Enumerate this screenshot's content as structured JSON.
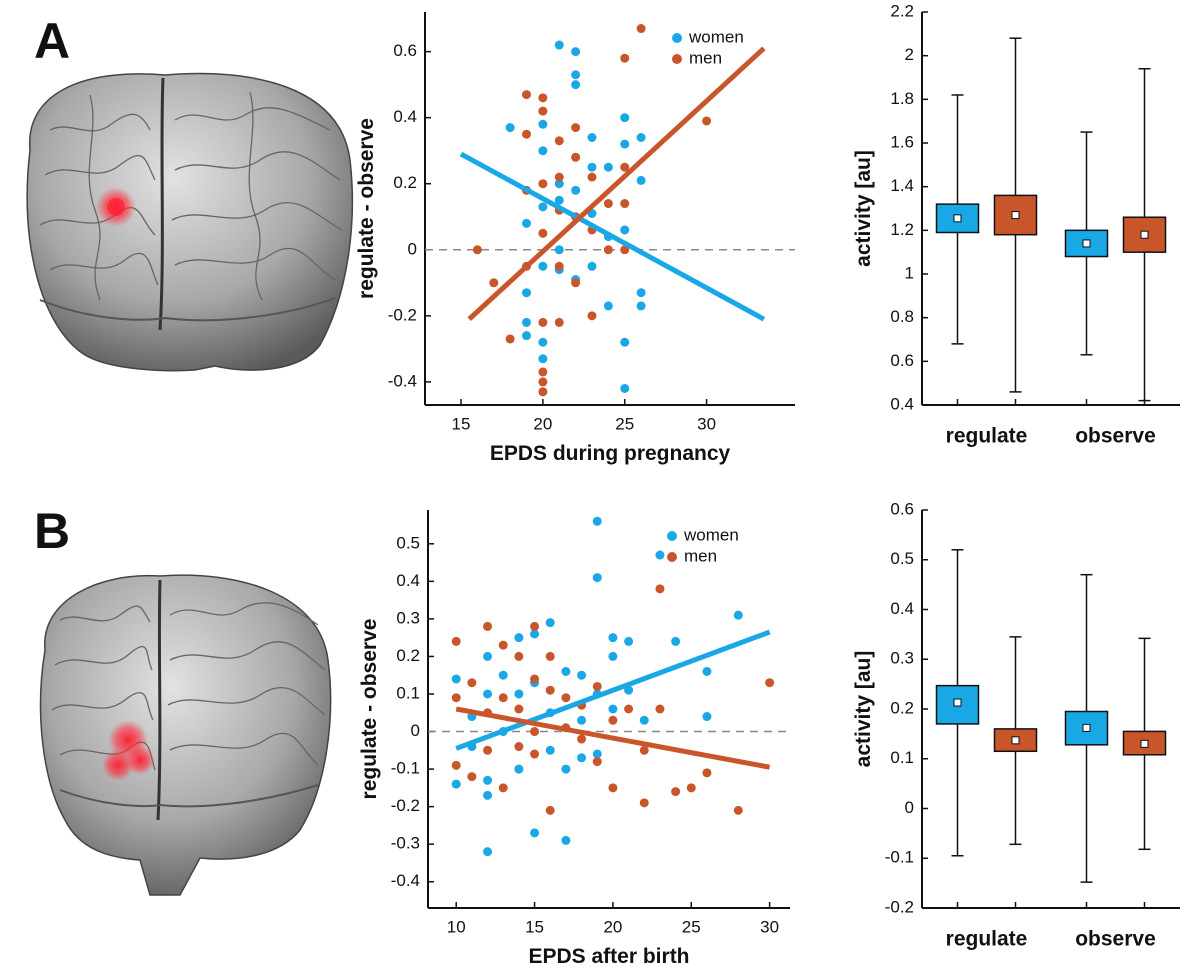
{
  "panel_labels": [
    "A",
    "B"
  ],
  "chart_data": [
    {
      "type": "scatter",
      "xlabel": "EPDS during pregnancy",
      "ylabel": "regulate - observe",
      "xlim": [
        12.8,
        35.4
      ],
      "ylim": [
        -0.47,
        0.72
      ],
      "xticks": [
        15,
        20,
        25,
        30
      ],
      "yticks": [
        -0.4,
        -0.2,
        0,
        0.2,
        0.4,
        0.6
      ],
      "hline": 0,
      "legend": "upper right",
      "series": [
        {
          "name": "women",
          "color": "#1aa7e6",
          "x": [
            18,
            19,
            19,
            19,
            19,
            20,
            20,
            20,
            20,
            20,
            20,
            21,
            21,
            21,
            21,
            21,
            22,
            22,
            22,
            22,
            22,
            23,
            23,
            23,
            23,
            24,
            24,
            24,
            25,
            25,
            25,
            25,
            25,
            26,
            26,
            26,
            26
          ],
          "values": [
            0.37,
            0.08,
            -0.13,
            -0.22,
            -0.26,
            0.38,
            0.3,
            0.13,
            -0.05,
            -0.28,
            -0.33,
            0.62,
            0.2,
            0.15,
            -0.06,
            0.0,
            0.6,
            0.53,
            0.5,
            0.18,
            -0.09,
            0.34,
            0.25,
            0.11,
            -0.05,
            0.25,
            0.04,
            -0.17,
            0.4,
            0.32,
            0.06,
            -0.28,
            -0.42,
            0.34,
            0.21,
            -0.13,
            -0.17
          ],
          "fit": {
            "x": [
              15,
              33.5
            ],
            "y": [
              0.29,
              -0.21
            ]
          }
        },
        {
          "name": "men",
          "color": "#c9562b",
          "x": [
            16,
            17,
            18,
            19,
            19,
            19,
            19,
            20,
            20,
            20,
            20,
            20,
            20,
            20,
            20,
            21,
            21,
            21,
            21,
            21,
            22,
            22,
            22,
            22,
            23,
            23,
            23,
            24,
            24,
            25,
            25,
            25,
            25,
            26,
            30
          ],
          "values": [
            0.0,
            -0.1,
            -0.27,
            0.47,
            0.35,
            0.18,
            -0.05,
            0.46,
            0.42,
            0.2,
            0.05,
            -0.22,
            -0.37,
            -0.4,
            -0.43,
            0.33,
            0.22,
            0.12,
            -0.05,
            -0.22,
            0.37,
            0.28,
            0.1,
            -0.1,
            0.22,
            0.06,
            -0.2,
            0.14,
            0.0,
            0.58,
            0.25,
            0.14,
            0.0,
            0.67,
            0.39
          ],
          "fit": {
            "x": [
              15.5,
              33.5
            ],
            "y": [
              -0.21,
              0.61
            ]
          }
        }
      ]
    },
    {
      "type": "box",
      "ylabel": "activity [au]",
      "categories": [
        "regulate",
        "observe"
      ],
      "ylim": [
        0.4,
        2.2
      ],
      "yticks": [
        0.4,
        0.6,
        0.8,
        1,
        1.2,
        1.4,
        1.6,
        1.8,
        2,
        2.2
      ],
      "series": [
        {
          "color": "#1aa7e6",
          "whisker_low": [
            0.68,
            0.63
          ],
          "q1": [
            1.19,
            1.08
          ],
          "mean": [
            1.255,
            1.14
          ],
          "q3": [
            1.32,
            1.2
          ],
          "whisker_high": [
            1.82,
            1.65
          ]
        },
        {
          "color": "#c9562b",
          "whisker_low": [
            0.46,
            0.42
          ],
          "q1": [
            1.18,
            1.1
          ],
          "mean": [
            1.27,
            1.18
          ],
          "q3": [
            1.36,
            1.26
          ],
          "whisker_high": [
            2.08,
            1.94
          ]
        }
      ]
    },
    {
      "type": "scatter",
      "xlabel": "EPDS after birth",
      "ylabel": "regulate - observe",
      "xlim": [
        8.2,
        31.3
      ],
      "ylim": [
        -0.47,
        0.59
      ],
      "xticks": [
        10,
        15,
        20,
        25,
        30
      ],
      "yticks": [
        -0.4,
        -0.3,
        -0.2,
        -0.1,
        0,
        0.1,
        0.2,
        0.3,
        0.4,
        0.5
      ],
      "hline": 0,
      "legend": "upper right",
      "series": [
        {
          "name": "women",
          "color": "#1aa7e6",
          "x": [
            10,
            10,
            11,
            11,
            12,
            12,
            12,
            12,
            12,
            13,
            13,
            14,
            14,
            14,
            15,
            15,
            15,
            16,
            16,
            16,
            17,
            17,
            17,
            18,
            18,
            18,
            19,
            19,
            19,
            19,
            20,
            20,
            20,
            21,
            21,
            22,
            23,
            24,
            26,
            26,
            28
          ],
          "values": [
            0.14,
            -0.14,
            0.04,
            -0.04,
            0.2,
            0.1,
            -0.13,
            -0.17,
            -0.32,
            0.15,
            0.0,
            0.25,
            0.1,
            -0.1,
            0.26,
            0.13,
            -0.27,
            0.29,
            0.05,
            -0.05,
            0.16,
            -0.1,
            -0.29,
            0.15,
            0.03,
            -0.07,
            0.56,
            0.41,
            0.1,
            -0.06,
            0.25,
            0.2,
            0.06,
            0.24,
            0.11,
            0.03,
            0.47,
            0.24,
            0.16,
            0.04,
            0.31
          ],
          "fit": {
            "x": [
              10,
              30
            ],
            "y": [
              -0.045,
              0.265
            ]
          }
        },
        {
          "name": "men",
          "color": "#c9562b",
          "x": [
            10,
            10,
            10,
            11,
            11,
            12,
            12,
            12,
            13,
            13,
            13,
            14,
            14,
            14,
            15,
            15,
            15,
            15,
            16,
            16,
            16,
            17,
            17,
            18,
            18,
            19,
            19,
            20,
            20,
            21,
            22,
            22,
            23,
            23,
            24,
            25,
            26,
            28,
            30
          ],
          "values": [
            0.24,
            0.09,
            -0.09,
            0.13,
            -0.12,
            0.28,
            0.05,
            -0.05,
            0.23,
            0.09,
            -0.15,
            0.2,
            0.06,
            -0.04,
            0.28,
            0.14,
            0.0,
            -0.06,
            0.2,
            0.11,
            -0.21,
            0.09,
            0.01,
            0.07,
            -0.02,
            0.12,
            -0.08,
            0.03,
            -0.15,
            0.06,
            -0.05,
            -0.19,
            0.38,
            0.06,
            -0.16,
            -0.15,
            -0.11,
            -0.21,
            0.13
          ],
          "fit": {
            "x": [
              10,
              30
            ],
            "y": [
              0.06,
              -0.095
            ]
          }
        }
      ]
    },
    {
      "type": "box",
      "ylabel": "activity [au]",
      "categories": [
        "regulate",
        "observe"
      ],
      "ylim": [
        -0.2,
        0.6
      ],
      "yticks": [
        -0.2,
        -0.1,
        0,
        0.1,
        0.2,
        0.3,
        0.4,
        0.5,
        0.6
      ],
      "series": [
        {
          "color": "#1aa7e6",
          "whisker_low": [
            -0.095,
            -0.148
          ],
          "q1": [
            0.17,
            0.128
          ],
          "mean": [
            0.213,
            0.162
          ],
          "q3": [
            0.247,
            0.195
          ],
          "whisker_high": [
            0.52,
            0.47
          ]
        },
        {
          "color": "#c9562b",
          "whisker_low": [
            -0.072,
            -0.082
          ],
          "q1": [
            0.115,
            0.108
          ],
          "mean": [
            0.137,
            0.13
          ],
          "q3": [
            0.16,
            0.155
          ],
          "whisker_high": [
            0.345,
            0.342
          ]
        }
      ]
    }
  ]
}
